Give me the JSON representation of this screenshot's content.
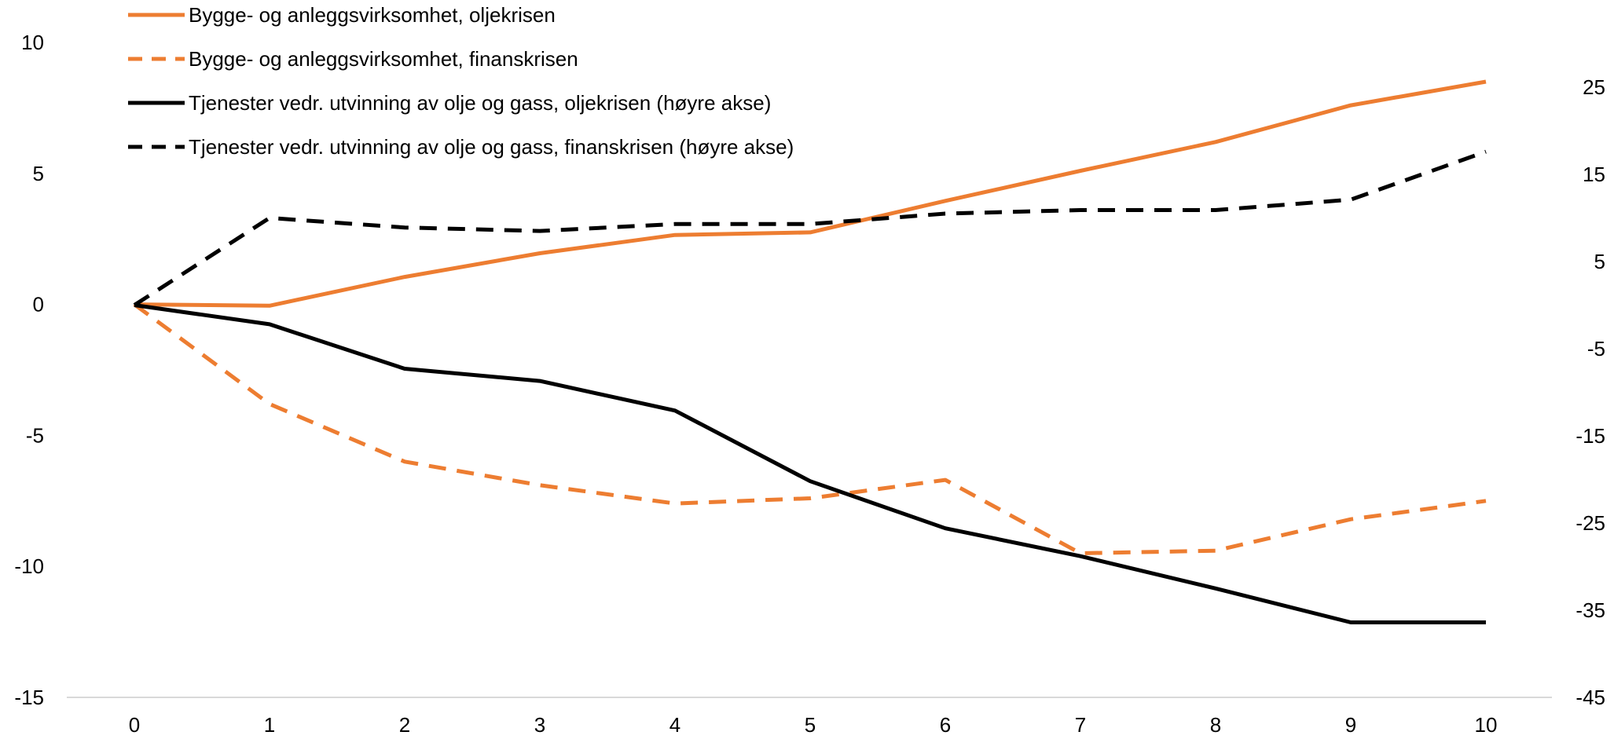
{
  "chart_data": {
    "type": "line",
    "title": "",
    "xlabel": "",
    "ylabel": "",
    "x": [
      0,
      1,
      2,
      3,
      4,
      5,
      6,
      7,
      8,
      9,
      10
    ],
    "y_left": {
      "range": [
        -15,
        10
      ],
      "ticks": [
        10,
        5,
        0,
        -5,
        -10,
        -15
      ]
    },
    "y_right": {
      "range": [
        -45,
        30
      ],
      "ticks": [
        25,
        15,
        5,
        -5,
        -15,
        -25,
        -35,
        -45
      ]
    },
    "grid": false,
    "legend_position": "top-left",
    "series": [
      {
        "name": "Bygge- og anleggsvirksomhet, oljekrisen",
        "axis": "left",
        "color": "#ED7D31",
        "dash": "solid",
        "values": [
          0,
          -0.05,
          1.05,
          1.95,
          2.65,
          2.75,
          3.95,
          5.1,
          6.2,
          7.6,
          8.5
        ]
      },
      {
        "name": "Bygge- og anleggsvirksomhet, finanskrisen",
        "axis": "left",
        "color": "#ED7D31",
        "dash": "dashed",
        "values": [
          0,
          -3.8,
          -6.0,
          -6.9,
          -7.6,
          -7.4,
          -6.7,
          -9.5,
          -9.4,
          -8.2,
          -7.5
        ]
      },
      {
        "name": "Tjenester vedr. utvinning av olje og gass, oljekrisen (høyre akse)",
        "axis": "right",
        "color": "#000000",
        "dash": "solid",
        "values": [
          0,
          -2.2,
          -7.3,
          -8.7,
          -12.1,
          -20.2,
          -25.6,
          -28.8,
          -32.5,
          -36.4,
          -36.4
        ]
      },
      {
        "name": "Tjenester vedr. utvinning av olje og gass, finanskrisen (høyre akse)",
        "axis": "right",
        "color": "#000000",
        "dash": "dashed",
        "values": [
          0,
          10.0,
          8.9,
          8.5,
          9.3,
          9.3,
          10.5,
          10.9,
          10.9,
          12.1,
          17.6
        ]
      }
    ]
  }
}
